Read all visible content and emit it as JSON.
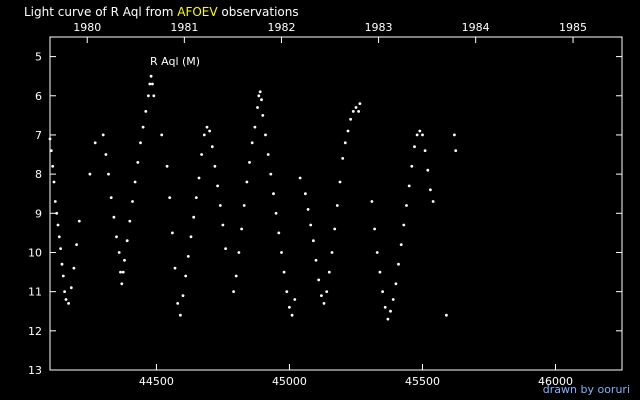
{
  "title": {
    "prefix": "Light curve of R Aql from ",
    "highlight": "AFOEV",
    "suffix": " observations"
  },
  "credit": "drawn by ooruri",
  "colors": {
    "background": "#000000",
    "points": "#ffffff",
    "highlight": "#ffff00",
    "credit": "#7fb2ff"
  },
  "chart_data": {
    "type": "scatter",
    "annotation": "R Aql (M)",
    "xlabel": "",
    "ylabel": "",
    "xlim": [
      44100,
      46250
    ],
    "ylim": [
      13,
      4.5
    ],
    "y_inverted": true,
    "x_ticks": [
      "44500",
      "45000",
      "45500",
      "46000"
    ],
    "y_ticks": [
      "5",
      "6",
      "7",
      "8",
      "9",
      "10",
      "11",
      "12",
      "13"
    ],
    "top_axis_years": [
      "1980",
      "1981",
      "1982",
      "1983",
      "1984",
      "1985"
    ],
    "top_axis_year_positions_jd": [
      44240,
      44605,
      44970,
      45335,
      45700,
      46066
    ],
    "series": [
      {
        "points": [
          [
            44100,
            7.1
          ],
          [
            44105,
            7.4
          ],
          [
            44110,
            7.8
          ],
          [
            44115,
            8.2
          ],
          [
            44120,
            8.7
          ],
          [
            44125,
            9.0
          ],
          [
            44130,
            9.3
          ],
          [
            44135,
            9.6
          ],
          [
            44140,
            9.9
          ],
          [
            44145,
            10.3
          ],
          [
            44150,
            10.6
          ],
          [
            44155,
            11.0
          ],
          [
            44160,
            11.2
          ],
          [
            44170,
            11.3
          ],
          [
            44180,
            10.9
          ],
          [
            44190,
            10.4
          ],
          [
            44200,
            9.8
          ],
          [
            44210,
            9.2
          ],
          [
            44250,
            8.0
          ],
          [
            44270,
            7.2
          ],
          [
            44300,
            7.0
          ],
          [
            44310,
            7.5
          ],
          [
            44320,
            8.0
          ],
          [
            44330,
            8.6
          ],
          [
            44340,
            9.1
          ],
          [
            44350,
            9.6
          ],
          [
            44360,
            10.0
          ],
          [
            44365,
            10.5
          ],
          [
            44370,
            10.8
          ],
          [
            44375,
            10.5
          ],
          [
            44380,
            10.2
          ],
          [
            44390,
            9.7
          ],
          [
            44400,
            9.2
          ],
          [
            44410,
            8.7
          ],
          [
            44420,
            8.2
          ],
          [
            44430,
            7.7
          ],
          [
            44440,
            7.2
          ],
          [
            44450,
            6.8
          ],
          [
            44460,
            6.4
          ],
          [
            44470,
            6.0
          ],
          [
            44475,
            5.7
          ],
          [
            44480,
            5.5
          ],
          [
            44485,
            5.7
          ],
          [
            44490,
            6.0
          ],
          [
            44520,
            7.0
          ],
          [
            44540,
            7.8
          ],
          [
            44550,
            8.6
          ],
          [
            44560,
            9.5
          ],
          [
            44570,
            10.4
          ],
          [
            44580,
            11.3
          ],
          [
            44590,
            11.6
          ],
          [
            44600,
            11.1
          ],
          [
            44610,
            10.6
          ],
          [
            44620,
            10.1
          ],
          [
            44630,
            9.6
          ],
          [
            44640,
            9.1
          ],
          [
            44650,
            8.6
          ],
          [
            44660,
            8.1
          ],
          [
            44670,
            7.5
          ],
          [
            44680,
            7.0
          ],
          [
            44690,
            6.8
          ],
          [
            44700,
            6.9
          ],
          [
            44710,
            7.3
          ],
          [
            44720,
            7.8
          ],
          [
            44730,
            8.3
          ],
          [
            44740,
            8.8
          ],
          [
            44750,
            9.3
          ],
          [
            44760,
            9.9
          ],
          [
            44790,
            11.0
          ],
          [
            44800,
            10.6
          ],
          [
            44810,
            10.0
          ],
          [
            44820,
            9.4
          ],
          [
            44830,
            8.8
          ],
          [
            44840,
            8.2
          ],
          [
            44850,
            7.7
          ],
          [
            44860,
            7.2
          ],
          [
            44870,
            6.8
          ],
          [
            44880,
            6.3
          ],
          [
            44885,
            6.0
          ],
          [
            44890,
            5.9
          ],
          [
            44895,
            6.1
          ],
          [
            44900,
            6.5
          ],
          [
            44910,
            7.0
          ],
          [
            44920,
            7.5
          ],
          [
            44930,
            8.0
          ],
          [
            44940,
            8.5
          ],
          [
            44950,
            9.0
          ],
          [
            44960,
            9.5
          ],
          [
            44970,
            10.0
          ],
          [
            44980,
            10.5
          ],
          [
            44990,
            11.0
          ],
          [
            45000,
            11.4
          ],
          [
            45010,
            11.6
          ],
          [
            45020,
            11.2
          ],
          [
            45040,
            8.1
          ],
          [
            45060,
            8.5
          ],
          [
            45070,
            8.9
          ],
          [
            45080,
            9.3
          ],
          [
            45090,
            9.7
          ],
          [
            45100,
            10.2
          ],
          [
            45110,
            10.7
          ],
          [
            45120,
            11.1
          ],
          [
            45130,
            11.3
          ],
          [
            45140,
            11.0
          ],
          [
            45150,
            10.5
          ],
          [
            45160,
            10.0
          ],
          [
            45170,
            9.4
          ],
          [
            45180,
            8.8
          ],
          [
            45190,
            8.2
          ],
          [
            45200,
            7.6
          ],
          [
            45210,
            7.2
          ],
          [
            45220,
            6.9
          ],
          [
            45230,
            6.6
          ],
          [
            45240,
            6.4
          ],
          [
            45250,
            6.3
          ],
          [
            45260,
            6.4
          ],
          [
            45265,
            6.2
          ],
          [
            45310,
            8.7
          ],
          [
            45320,
            9.4
          ],
          [
            45330,
            10.0
          ],
          [
            45340,
            10.5
          ],
          [
            45350,
            11.0
          ],
          [
            45360,
            11.4
          ],
          [
            45370,
            11.7
          ],
          [
            45380,
            11.5
          ],
          [
            45390,
            11.2
          ],
          [
            45400,
            10.8
          ],
          [
            45410,
            10.3
          ],
          [
            45420,
            9.8
          ],
          [
            45430,
            9.3
          ],
          [
            45440,
            8.8
          ],
          [
            45450,
            8.3
          ],
          [
            45460,
            7.8
          ],
          [
            45470,
            7.3
          ],
          [
            45480,
            7.0
          ],
          [
            45490,
            6.9
          ],
          [
            45500,
            7.0
          ],
          [
            45510,
            7.4
          ],
          [
            45520,
            7.9
          ],
          [
            45530,
            8.4
          ],
          [
            45540,
            8.7
          ],
          [
            45590,
            11.6
          ],
          [
            45620,
            7.0
          ],
          [
            45625,
            7.4
          ]
        ]
      }
    ]
  }
}
